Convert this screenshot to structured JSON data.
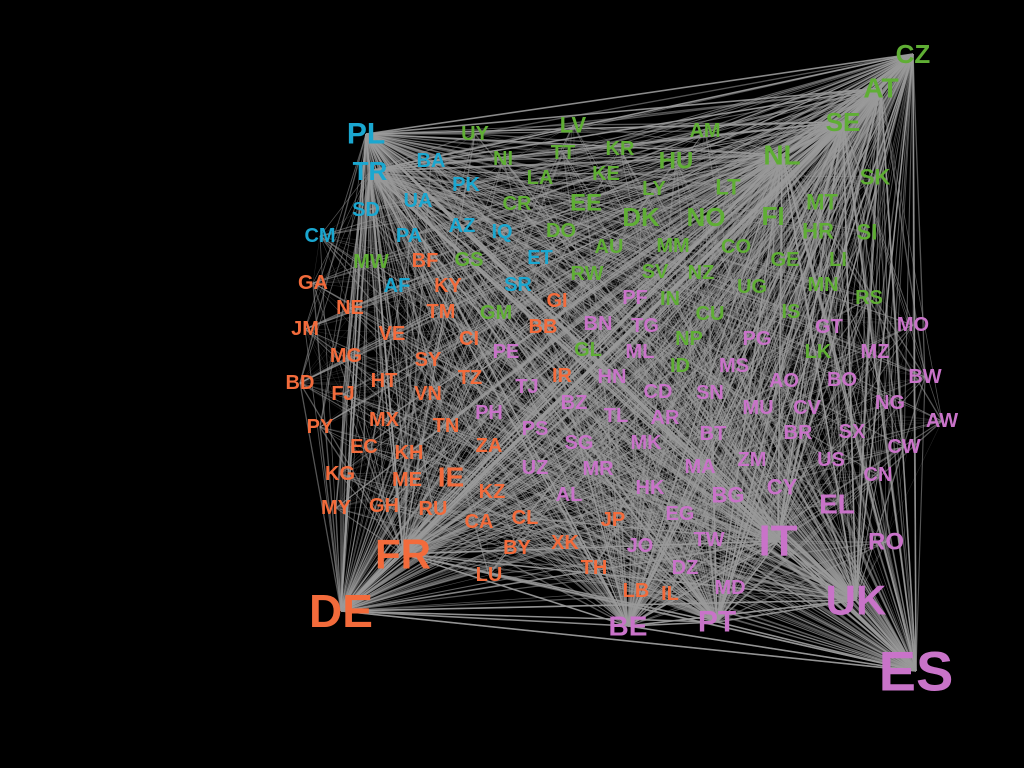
{
  "colors": {
    "background": "#000000",
    "edge": "#9a9a9a",
    "clusters": {
      "green": "#5fae34",
      "blue": "#1aa7d0",
      "orange": "#f36b3b",
      "pink": "#c973c9"
    }
  },
  "nodes": [
    {
      "label": "CZ",
      "cluster": "green"
    },
    {
      "label": "AT",
      "cluster": "green"
    },
    {
      "label": "SE",
      "cluster": "green"
    },
    {
      "label": "NL",
      "cluster": "green"
    },
    {
      "label": "HU",
      "cluster": "green"
    },
    {
      "label": "SK",
      "cluster": "green"
    },
    {
      "label": "MT",
      "cluster": "green"
    },
    {
      "label": "FI",
      "cluster": "green"
    },
    {
      "label": "NO",
      "cluster": "green"
    },
    {
      "label": "DK",
      "cluster": "green"
    },
    {
      "label": "EE",
      "cluster": "green"
    },
    {
      "label": "LT",
      "cluster": "green"
    },
    {
      "label": "LV",
      "cluster": "green"
    },
    {
      "label": "AM",
      "cluster": "green"
    },
    {
      "label": "UY",
      "cluster": "green"
    },
    {
      "label": "TT",
      "cluster": "green"
    },
    {
      "label": "KR",
      "cluster": "green"
    },
    {
      "label": "NI",
      "cluster": "green"
    },
    {
      "label": "LA",
      "cluster": "green"
    },
    {
      "label": "KE",
      "cluster": "green"
    },
    {
      "label": "LY",
      "cluster": "green"
    },
    {
      "label": "CR",
      "cluster": "green"
    },
    {
      "label": "DO",
      "cluster": "green"
    },
    {
      "label": "AU",
      "cluster": "green"
    },
    {
      "label": "MM",
      "cluster": "green"
    },
    {
      "label": "CO",
      "cluster": "green"
    },
    {
      "label": "HR",
      "cluster": "green"
    },
    {
      "label": "SI",
      "cluster": "green"
    },
    {
      "label": "GE",
      "cluster": "green"
    },
    {
      "label": "LI",
      "cluster": "green"
    },
    {
      "label": "NZ",
      "cluster": "green"
    },
    {
      "label": "SV",
      "cluster": "green"
    },
    {
      "label": "UG",
      "cluster": "green"
    },
    {
      "label": "MN",
      "cluster": "green"
    },
    {
      "label": "RS",
      "cluster": "green"
    },
    {
      "label": "RW",
      "cluster": "green"
    },
    {
      "label": "IN",
      "cluster": "green"
    },
    {
      "label": "CU",
      "cluster": "green"
    },
    {
      "label": "IS",
      "cluster": "green"
    },
    {
      "label": "NP",
      "cluster": "green"
    },
    {
      "label": "ID",
      "cluster": "green"
    },
    {
      "label": "LK",
      "cluster": "green"
    },
    {
      "label": "GL",
      "cluster": "green"
    },
    {
      "label": "GM",
      "cluster": "green"
    },
    {
      "label": "GS",
      "cluster": "green"
    },
    {
      "label": "MW",
      "cluster": "green"
    },
    {
      "label": "PL",
      "cluster": "blue"
    },
    {
      "label": "TR",
      "cluster": "blue"
    },
    {
      "label": "BA",
      "cluster": "blue"
    },
    {
      "label": "PK",
      "cluster": "blue"
    },
    {
      "label": "SD",
      "cluster": "blue"
    },
    {
      "label": "UA",
      "cluster": "blue"
    },
    {
      "label": "CM",
      "cluster": "blue"
    },
    {
      "label": "PA",
      "cluster": "blue"
    },
    {
      "label": "AZ",
      "cluster": "blue"
    },
    {
      "label": "IQ",
      "cluster": "blue"
    },
    {
      "label": "ET",
      "cluster": "blue"
    },
    {
      "label": "AF",
      "cluster": "blue"
    },
    {
      "label": "SR",
      "cluster": "blue"
    },
    {
      "label": "GA",
      "cluster": "orange"
    },
    {
      "label": "BF",
      "cluster": "orange"
    },
    {
      "label": "KY",
      "cluster": "orange"
    },
    {
      "label": "NE",
      "cluster": "orange"
    },
    {
      "label": "TM",
      "cluster": "orange"
    },
    {
      "label": "JM",
      "cluster": "orange"
    },
    {
      "label": "VE",
      "cluster": "orange"
    },
    {
      "label": "CI",
      "cluster": "orange"
    },
    {
      "label": "MG",
      "cluster": "orange"
    },
    {
      "label": "SY",
      "cluster": "orange"
    },
    {
      "label": "BD",
      "cluster": "orange"
    },
    {
      "label": "HT",
      "cluster": "orange"
    },
    {
      "label": "TZ",
      "cluster": "orange"
    },
    {
      "label": "FJ",
      "cluster": "orange"
    },
    {
      "label": "VN",
      "cluster": "orange"
    },
    {
      "label": "PY",
      "cluster": "orange"
    },
    {
      "label": "MX",
      "cluster": "orange"
    },
    {
      "label": "TN",
      "cluster": "orange"
    },
    {
      "label": "EC",
      "cluster": "orange"
    },
    {
      "label": "KH",
      "cluster": "orange"
    },
    {
      "label": "ZA",
      "cluster": "orange"
    },
    {
      "label": "KG",
      "cluster": "orange"
    },
    {
      "label": "ME",
      "cluster": "orange"
    },
    {
      "label": "IE",
      "cluster": "orange"
    },
    {
      "label": "MY",
      "cluster": "orange"
    },
    {
      "label": "GH",
      "cluster": "orange"
    },
    {
      "label": "RU",
      "cluster": "orange"
    },
    {
      "label": "KZ",
      "cluster": "orange"
    },
    {
      "label": "CA",
      "cluster": "orange"
    },
    {
      "label": "CL",
      "cluster": "orange"
    },
    {
      "label": "FR",
      "cluster": "orange"
    },
    {
      "label": "BY",
      "cluster": "orange"
    },
    {
      "label": "XK",
      "cluster": "orange"
    },
    {
      "label": "LU",
      "cluster": "orange"
    },
    {
      "label": "TH",
      "cluster": "orange"
    },
    {
      "label": "JP",
      "cluster": "orange"
    },
    {
      "label": "LB",
      "cluster": "orange"
    },
    {
      "label": "IL",
      "cluster": "orange"
    },
    {
      "label": "DE",
      "cluster": "orange"
    },
    {
      "label": "GI",
      "cluster": "orange"
    },
    {
      "label": "BB",
      "cluster": "orange"
    },
    {
      "label": "IR",
      "cluster": "orange"
    },
    {
      "label": "PF",
      "cluster": "pink"
    },
    {
      "label": "BN",
      "cluster": "pink"
    },
    {
      "label": "TG",
      "cluster": "pink"
    },
    {
      "label": "PG",
      "cluster": "pink"
    },
    {
      "label": "GT",
      "cluster": "pink"
    },
    {
      "label": "MO",
      "cluster": "pink"
    },
    {
      "label": "PE",
      "cluster": "pink"
    },
    {
      "label": "ML",
      "cluster": "pink"
    },
    {
      "label": "MS",
      "cluster": "pink"
    },
    {
      "label": "MZ",
      "cluster": "pink"
    },
    {
      "label": "HN",
      "cluster": "pink"
    },
    {
      "label": "AO",
      "cluster": "pink"
    },
    {
      "label": "BO",
      "cluster": "pink"
    },
    {
      "label": "BW",
      "cluster": "pink"
    },
    {
      "label": "TJ",
      "cluster": "pink"
    },
    {
      "label": "CD",
      "cluster": "pink"
    },
    {
      "label": "SN",
      "cluster": "pink"
    },
    {
      "label": "MU",
      "cluster": "pink"
    },
    {
      "label": "CV",
      "cluster": "pink"
    },
    {
      "label": "NG",
      "cluster": "pink"
    },
    {
      "label": "PH",
      "cluster": "pink"
    },
    {
      "label": "BZ",
      "cluster": "pink"
    },
    {
      "label": "TL",
      "cluster": "pink"
    },
    {
      "label": "AR",
      "cluster": "pink"
    },
    {
      "label": "AW",
      "cluster": "pink"
    },
    {
      "label": "PS",
      "cluster": "pink"
    },
    {
      "label": "SG",
      "cluster": "pink"
    },
    {
      "label": "MK",
      "cluster": "pink"
    },
    {
      "label": "BT",
      "cluster": "pink"
    },
    {
      "label": "BR",
      "cluster": "pink"
    },
    {
      "label": "SX",
      "cluster": "pink"
    },
    {
      "label": "CW",
      "cluster": "pink"
    },
    {
      "label": "UZ",
      "cluster": "pink"
    },
    {
      "label": "MR",
      "cluster": "pink"
    },
    {
      "label": "MA",
      "cluster": "pink"
    },
    {
      "label": "ZM",
      "cluster": "pink"
    },
    {
      "label": "US",
      "cluster": "pink"
    },
    {
      "label": "CN",
      "cluster": "pink"
    },
    {
      "label": "AL",
      "cluster": "pink"
    },
    {
      "label": "HK",
      "cluster": "pink"
    },
    {
      "label": "BG",
      "cluster": "pink"
    },
    {
      "label": "CY",
      "cluster": "pink"
    },
    {
      "label": "EL",
      "cluster": "pink"
    },
    {
      "label": "EG",
      "cluster": "pink"
    },
    {
      "label": "IT",
      "cluster": "pink"
    },
    {
      "label": "JO",
      "cluster": "pink"
    },
    {
      "label": "TW",
      "cluster": "pink"
    },
    {
      "label": "RO",
      "cluster": "pink"
    },
    {
      "label": "DZ",
      "cluster": "pink"
    },
    {
      "label": "MD",
      "cluster": "pink"
    },
    {
      "label": "UK",
      "cluster": "pink"
    },
    {
      "label": "BE",
      "cluster": "pink"
    },
    {
      "label": "PT",
      "cluster": "pink"
    },
    {
      "label": "ES",
      "cluster": "pink"
    }
  ]
}
